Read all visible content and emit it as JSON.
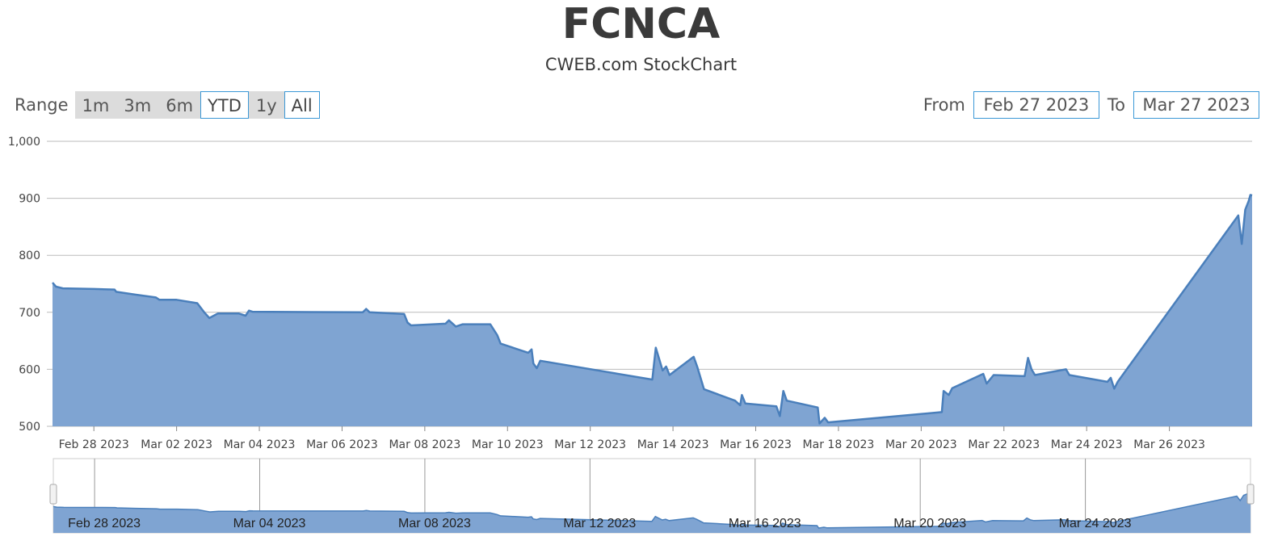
{
  "chart_data": {
    "type": "area",
    "title": "FCNCA",
    "subtitle": "CWEB.com StockChart",
    "range_selector": {
      "label": "Range",
      "buttons": [
        "1m",
        "3m",
        "6m",
        "YTD",
        "1y",
        "All"
      ],
      "selected": [
        "YTD",
        "All"
      ]
    },
    "date_range": {
      "from_label": "From",
      "from": "Feb 27 2023",
      "to_label": "To",
      "to": "Mar 27 2023"
    },
    "y_axis": {
      "min": 500,
      "max": 1000,
      "ticks": [
        500,
        600,
        700,
        800,
        900,
        1000
      ],
      "tick_labels": [
        "500",
        "600",
        "700",
        "800",
        "900",
        "1,000"
      ],
      "grid": true
    },
    "x_axis": {
      "min": "2023-02-27",
      "max": "2023-03-27",
      "ticks": [
        "2023-02-28",
        "2023-03-02",
        "2023-03-04",
        "2023-03-06",
        "2023-03-08",
        "2023-03-10",
        "2023-03-12",
        "2023-03-14",
        "2023-03-16",
        "2023-03-18",
        "2023-03-20",
        "2023-03-22",
        "2023-03-24",
        "2023-03-26"
      ],
      "tick_labels": [
        "Feb 28 2023",
        "Mar 02 2023",
        "Mar 04 2023",
        "Mar 06 2023",
        "Mar 08 2023",
        "Mar 10 2023",
        "Mar 12 2023",
        "Mar 14 2023",
        "Mar 16 2023",
        "Mar 18 2023",
        "Mar 20 2023",
        "Mar 22 2023",
        "Mar 24 2023",
        "Mar 26 2023"
      ]
    },
    "navigator": {
      "ticks": [
        "2023-02-28",
        "2023-03-04",
        "2023-03-08",
        "2023-03-12",
        "2023-03-16",
        "2023-03-20",
        "2023-03-24"
      ],
      "tick_labels": [
        "Feb 28 2023",
        "Mar 04 2023",
        "Mar 08 2023",
        "Mar 12 2023",
        "Mar 16 2023",
        "Mar 20 2023",
        "Mar 24 2023"
      ]
    },
    "colors": {
      "line": "#4a7fbb",
      "fill": "#7fa4d2",
      "grid": "#bbbbbb",
      "select_border": "#3b98d6"
    },
    "series": [
      {
        "points": [
          [
            "2023-02-27T00:00",
            752
          ],
          [
            "2023-02-27T02:00",
            745
          ],
          [
            "2023-02-27T06:00",
            742
          ],
          [
            "2023-02-28T00:00",
            741
          ],
          [
            "2023-02-28T12:00",
            740
          ],
          [
            "2023-02-28T13:00",
            736
          ],
          [
            "2023-03-01T00:00",
            731
          ],
          [
            "2023-03-01T12:00",
            726
          ],
          [
            "2023-03-01T14:00",
            722
          ],
          [
            "2023-03-02T00:00",
            722
          ],
          [
            "2023-03-02T12:00",
            716
          ],
          [
            "2023-03-02T16:00",
            700
          ],
          [
            "2023-03-02T19:00",
            690
          ],
          [
            "2023-03-03T00:00",
            698
          ],
          [
            "2023-03-03T12:00",
            698
          ],
          [
            "2023-03-03T16:00",
            694
          ],
          [
            "2023-03-03T18:00",
            703
          ],
          [
            "2023-03-03T20:00",
            701
          ],
          [
            "2023-03-06T12:00",
            700
          ],
          [
            "2023-03-06T14:00",
            706
          ],
          [
            "2023-03-06T16:00",
            700
          ],
          [
            "2023-03-07T12:00",
            697
          ],
          [
            "2023-03-07T14:00",
            682
          ],
          [
            "2023-03-07T16:00",
            677
          ],
          [
            "2023-03-08T12:00",
            680
          ],
          [
            "2023-03-08T14:00",
            686
          ],
          [
            "2023-03-08T18:00",
            675
          ],
          [
            "2023-03-08T22:00",
            679
          ],
          [
            "2023-03-09T14:00",
            679
          ],
          [
            "2023-03-09T18:00",
            660
          ],
          [
            "2023-03-09T20:00",
            645
          ],
          [
            "2023-03-10T12:00",
            629
          ],
          [
            "2023-03-10T14:00",
            635
          ],
          [
            "2023-03-10T15:00",
            610
          ],
          [
            "2023-03-10T17:00",
            602
          ],
          [
            "2023-03-10T19:00",
            615
          ],
          [
            "2023-03-13T12:00",
            582
          ],
          [
            "2023-03-13T14:00",
            638
          ],
          [
            "2023-03-13T18:00",
            598
          ],
          [
            "2023-03-13T20:00",
            605
          ],
          [
            "2023-03-13T22:00",
            590
          ],
          [
            "2023-03-14T12:00",
            622
          ],
          [
            "2023-03-14T14:00",
            605
          ],
          [
            "2023-03-14T18:00",
            565
          ],
          [
            "2023-03-15T12:00",
            545
          ],
          [
            "2023-03-15T15:00",
            537
          ],
          [
            "2023-03-15T16:00",
            555
          ],
          [
            "2023-03-15T18:00",
            540
          ],
          [
            "2023-03-16T12:00",
            535
          ],
          [
            "2023-03-16T14:00",
            518
          ],
          [
            "2023-03-16T16:00",
            562
          ],
          [
            "2023-03-16T18:00",
            545
          ],
          [
            "2023-03-17T12:00",
            533
          ],
          [
            "2023-03-17T13:00",
            505
          ],
          [
            "2023-03-17T16:00",
            515
          ],
          [
            "2023-03-17T18:00",
            507
          ],
          [
            "2023-03-20T12:00",
            525
          ],
          [
            "2023-03-20T13:00",
            562
          ],
          [
            "2023-03-20T16:00",
            555
          ],
          [
            "2023-03-20T18:00",
            567
          ],
          [
            "2023-03-21T12:00",
            592
          ],
          [
            "2023-03-21T14:00",
            575
          ],
          [
            "2023-03-21T18:00",
            590
          ],
          [
            "2023-03-22T12:00",
            588
          ],
          [
            "2023-03-22T14:00",
            620
          ],
          [
            "2023-03-22T16:00",
            600
          ],
          [
            "2023-03-22T18:00",
            590
          ],
          [
            "2023-03-23T12:00",
            600
          ],
          [
            "2023-03-23T14:00",
            590
          ],
          [
            "2023-03-24T12:00",
            578
          ],
          [
            "2023-03-24T14:00",
            585
          ],
          [
            "2023-03-24T16:00",
            566
          ],
          [
            "2023-03-24T18:00",
            578
          ],
          [
            "2023-03-27T16:00",
            870
          ],
          [
            "2023-03-27T18:00",
            820
          ],
          [
            "2023-03-27T20:00",
            880
          ],
          [
            "2023-03-27T22:00",
            895
          ],
          [
            "2023-03-27T23:00",
            906
          ],
          [
            "2023-03-28T00:00",
            905
          ]
        ]
      }
    ]
  }
}
